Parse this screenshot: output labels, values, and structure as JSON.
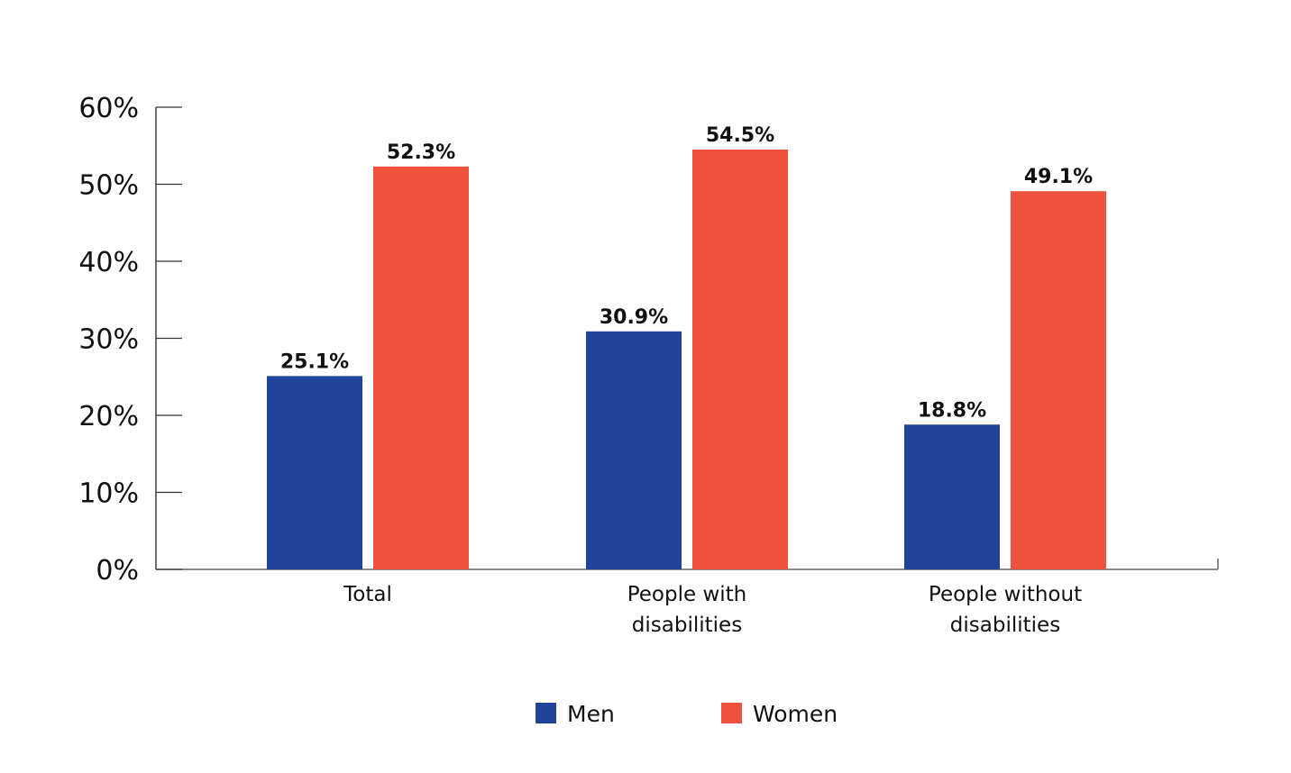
{
  "chart_data": {
    "type": "bar",
    "title": "",
    "xlabel": "",
    "ylabel": "",
    "ylim": [
      0,
      60
    ],
    "yticks": [
      0,
      10,
      20,
      30,
      40,
      50,
      60
    ],
    "ytick_labels": [
      "0%",
      "10%",
      "20%",
      "30%",
      "40%",
      "50%",
      "60%"
    ],
    "categories": [
      [
        "Total"
      ],
      [
        "People with",
        "disabilities"
      ],
      [
        "People without",
        "disabilities"
      ]
    ],
    "series": [
      {
        "name": "Men",
        "color": "#21449a",
        "values": [
          25.1,
          30.9,
          18.8
        ],
        "labels": [
          "25.1%",
          "30.9%",
          "18.8%"
        ]
      },
      {
        "name": "Women",
        "color": "#ef523c",
        "values": [
          52.3,
          54.5,
          49.1
        ],
        "labels": [
          "52.3%",
          "54.5%",
          "49.1%"
        ]
      }
    ],
    "legend_position": "bottom-center",
    "grid": false
  }
}
